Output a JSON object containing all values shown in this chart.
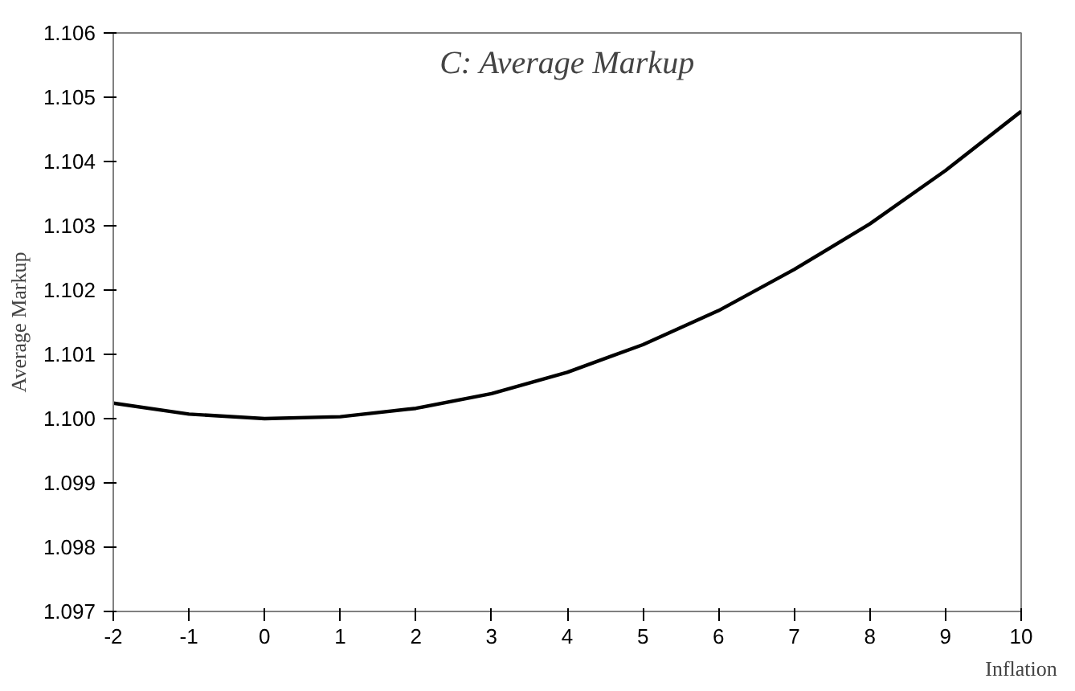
{
  "chart_data": {
    "type": "line",
    "title": "C: Average Markup",
    "xlabel": "Inflation",
    "ylabel": "Average Markup",
    "x": [
      -2,
      -1,
      0,
      1,
      2,
      3,
      4,
      5,
      6,
      7,
      8,
      9,
      10
    ],
    "series": [
      {
        "color": "#000000",
        "values": [
          1.10024,
          1.10007,
          1.1,
          1.10003,
          1.10016,
          1.10039,
          1.10072,
          1.10115,
          1.10168,
          1.10232,
          1.10303,
          1.10386,
          1.10478
        ]
      }
    ],
    "xlim": [
      -2,
      10
    ],
    "ylim": [
      1.097,
      1.106
    ],
    "xticks": [
      -2,
      -1,
      0,
      1,
      2,
      3,
      4,
      5,
      6,
      7,
      8,
      9,
      10
    ],
    "yticks": [
      {
        "value": 1.097,
        "label": "1.097"
      },
      {
        "value": 1.098,
        "label": "1.098"
      },
      {
        "value": 1.099,
        "label": "1.099"
      },
      {
        "value": 1.1,
        "label": "1.100"
      },
      {
        "value": 1.101,
        "label": "1.101"
      },
      {
        "value": 1.102,
        "label": "1.102"
      },
      {
        "value": 1.103,
        "label": "1.103"
      },
      {
        "value": 1.104,
        "label": "1.104"
      },
      {
        "value": 1.105,
        "label": "1.105"
      },
      {
        "value": 1.106,
        "label": "1.106"
      }
    ],
    "grid": false,
    "marker": "none",
    "line_style": "solid"
  }
}
